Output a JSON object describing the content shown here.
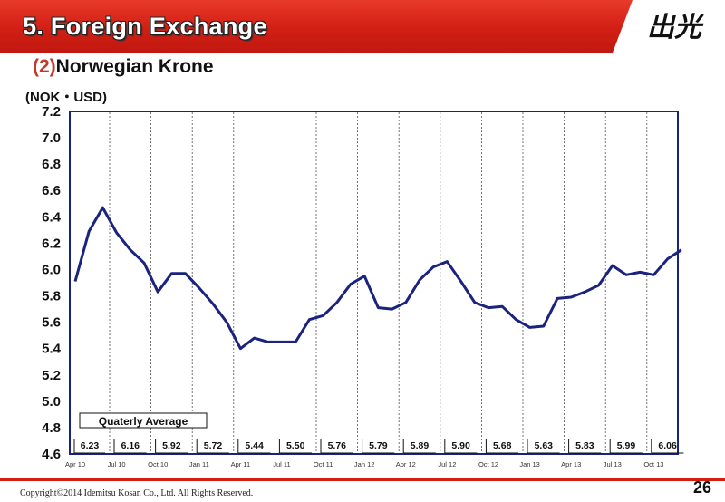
{
  "header": {
    "title": "5. Foreign Exchange",
    "logo": "出光"
  },
  "subtitle": {
    "number": "(2)",
    "text": "Norwegian Krone"
  },
  "unit": "(NOK・USD)",
  "footer": {
    "copyright": "Copyright©2014 Idemitsu Kosan Co., Ltd. All Rights Reserved.",
    "page": "26"
  },
  "colors": {
    "header": "#d21f14",
    "line": "#1a237e",
    "frame": "#1a237e"
  },
  "chart_data": {
    "type": "line",
    "title": "",
    "xlabel": "",
    "ylabel": "(NOK・USD)",
    "ylim": [
      4.6,
      7.2
    ],
    "yticks": [
      "4.6",
      "4.8",
      "5.0",
      "5.2",
      "5.4",
      "5.6",
      "5.8",
      "6.0",
      "6.2",
      "6.4",
      "6.6",
      "6.8",
      "7.0",
      "7.2"
    ],
    "x_tick_labels": [
      "Apr 10",
      "Jul 10",
      "Oct 10",
      "Jan 11",
      "Apr 11",
      "Jul 11",
      "Oct 11",
      "Jan 12",
      "Apr 12",
      "Jul 12",
      "Oct 12",
      "Jan 13",
      "Apr 13",
      "Jul 13",
      "Oct 13"
    ],
    "series": [
      {
        "values": [
          5.91,
          6.29,
          6.47,
          6.28,
          6.15,
          6.05,
          5.83,
          5.97,
          5.97,
          5.86,
          5.74,
          5.6,
          5.4,
          5.48,
          5.45,
          5.45,
          5.45,
          5.62,
          5.65,
          5.75,
          5.89,
          5.95,
          5.71,
          5.7,
          5.75,
          5.92,
          6.02,
          6.06,
          5.91,
          5.75,
          5.71,
          5.72,
          5.62,
          5.56,
          5.57,
          5.78,
          5.79,
          5.83,
          5.88,
          6.03,
          5.96,
          5.98,
          5.96,
          6.08,
          6.15
        ]
      }
    ],
    "quarterly_average_label": "Quaterly Average",
    "quarterly_averages": [
      "6.23",
      "6.16",
      "5.92",
      "5.72",
      "5.44",
      "5.50",
      "5.76",
      "5.79",
      "5.89",
      "5.90",
      "5.68",
      "5.63",
      "5.83",
      "5.99",
      "6.06"
    ],
    "grid": "vertical-dashed"
  }
}
